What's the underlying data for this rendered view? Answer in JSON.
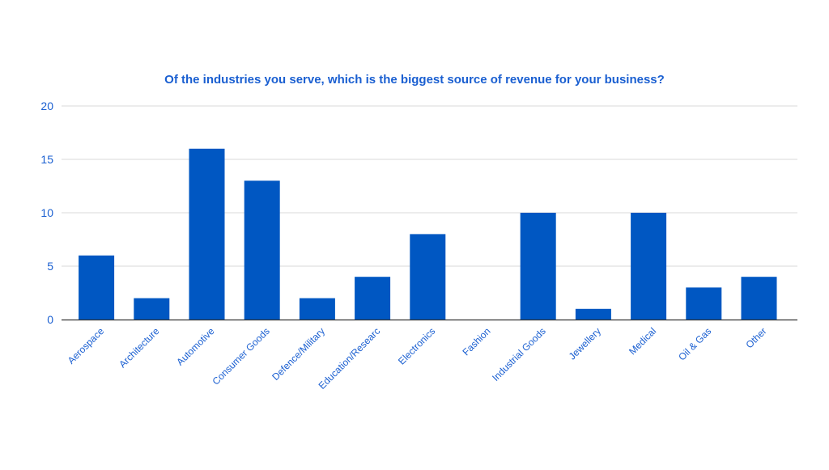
{
  "chart_data": {
    "type": "bar",
    "title": "Of the industries you serve, which is the biggest source of revenue for your business?",
    "xlabel": "",
    "ylabel": "",
    "ylim": [
      0,
      20
    ],
    "yticks": [
      0,
      5,
      10,
      15,
      20
    ],
    "grid": true,
    "legend": "none",
    "categories": [
      "Aerospace",
      "Architecture",
      "Automotive",
      "Consumer Goods",
      "Defence/Military",
      "Education/Researc",
      "Electronics",
      "Fashion",
      "Industrial Goods",
      "Jewellery",
      "Medical",
      "Oil & Gas",
      "Other"
    ],
    "values": [
      6,
      2,
      16,
      13,
      2,
      4,
      8,
      0,
      10,
      1,
      10,
      3,
      4
    ]
  },
  "colors": {
    "bar": "#0057c2",
    "text": "#1a5fd1",
    "gridline": "#d9d9d9",
    "axis": "#333333",
    "background": "#ffffff"
  }
}
